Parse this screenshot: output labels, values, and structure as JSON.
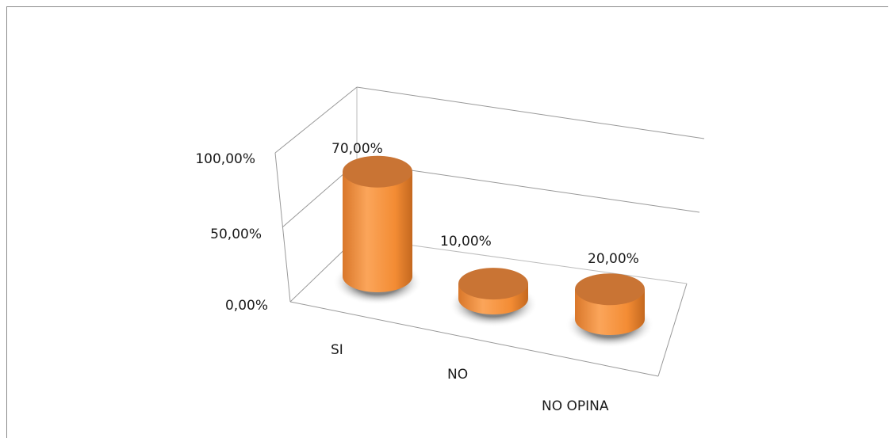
{
  "chart_data": {
    "type": "bar",
    "style": "3d-cylinder",
    "categories": [
      "SI",
      "NO",
      "NO OPINA"
    ],
    "values": [
      70.0,
      10.0,
      20.0
    ],
    "data_labels": [
      "70,00%",
      "10,00%",
      "20,00%"
    ],
    "y_ticks": [
      "0,00%",
      "50,00%",
      "100,00%"
    ],
    "ylim": [
      0,
      100
    ],
    "grid": true,
    "legend": "none",
    "title": "",
    "xlabel": "",
    "ylabel": ""
  },
  "colors": {
    "bar_side": "#f7923a",
    "bar_top": "#c97434",
    "gridline": "#999999"
  }
}
